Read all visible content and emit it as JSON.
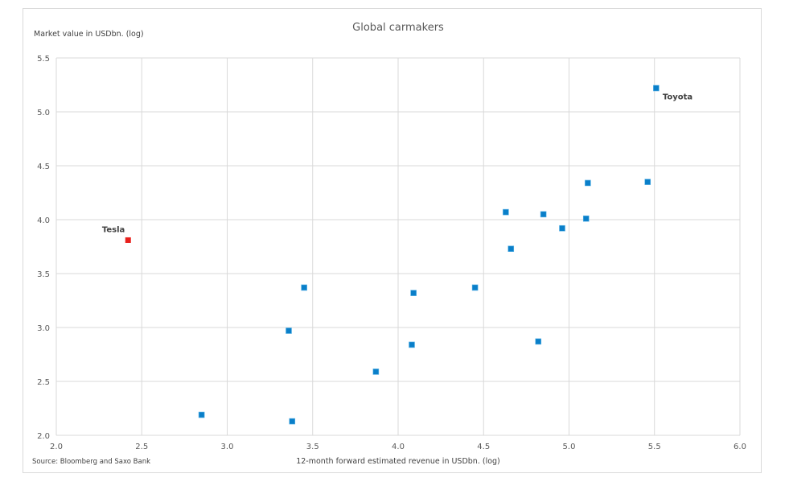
{
  "chart_data": {
    "type": "scatter",
    "title": "Global  carmakers",
    "ylabel": "Market value in USDbn. (log)",
    "xlabel": "12-month forward estimated revenue in USDbn. (log)",
    "source": "Source:  Bloomberg and Saxo Bank",
    "xlim": [
      2.0,
      6.0
    ],
    "ylim": [
      2.0,
      5.5
    ],
    "x_ticks": [
      "2.0",
      "2.5",
      "3.0",
      "3.5",
      "4.0",
      "4.5",
      "5.0",
      "5.5",
      "6.0"
    ],
    "y_ticks": [
      "2.0",
      "2.5",
      "3.0",
      "3.5",
      "4.0",
      "4.5",
      "5.0",
      "5.5"
    ],
    "grid": true,
    "colors": {
      "default": "#0a7fc9",
      "highlight": "#e8201c",
      "grid": "#d9d9d9"
    },
    "points": [
      {
        "x": 2.42,
        "y": 3.81,
        "label": "Tesla",
        "highlight": true
      },
      {
        "x": 2.85,
        "y": 2.19
      },
      {
        "x": 3.36,
        "y": 2.97
      },
      {
        "x": 3.38,
        "y": 2.13
      },
      {
        "x": 3.45,
        "y": 3.37
      },
      {
        "x": 3.87,
        "y": 2.59
      },
      {
        "x": 4.08,
        "y": 2.84
      },
      {
        "x": 4.09,
        "y": 3.32
      },
      {
        "x": 4.45,
        "y": 3.37
      },
      {
        "x": 4.63,
        "y": 4.07
      },
      {
        "x": 4.66,
        "y": 3.73
      },
      {
        "x": 4.82,
        "y": 2.87
      },
      {
        "x": 4.85,
        "y": 4.05
      },
      {
        "x": 4.96,
        "y": 3.92
      },
      {
        "x": 5.1,
        "y": 4.01
      },
      {
        "x": 5.11,
        "y": 4.34
      },
      {
        "x": 5.46,
        "y": 4.35
      },
      {
        "x": 5.51,
        "y": 5.22,
        "label": "Toyota"
      }
    ]
  }
}
